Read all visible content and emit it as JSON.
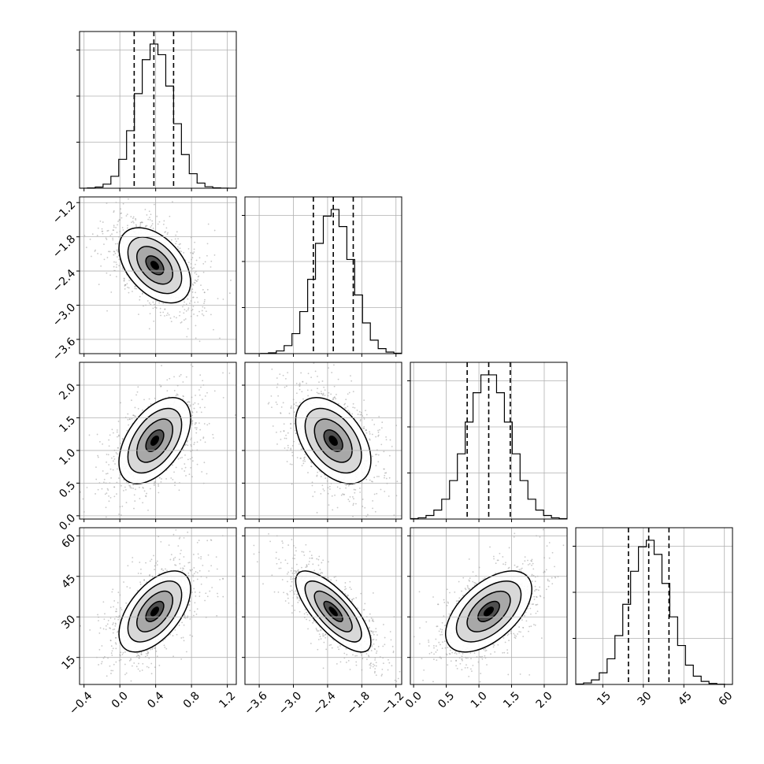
{
  "chart_data": {
    "type": "corner",
    "description_free": true,
    "n_params": 4,
    "grid": true,
    "quantile_lines": "dashed",
    "parameters": [
      {
        "range": [
          -0.45,
          1.3
        ],
        "ticks": [
          -0.4,
          0.0,
          0.4,
          0.8,
          1.2
        ],
        "tick_labels": [
          "−0.4",
          "0.0",
          "0.4",
          "0.8",
          "1.2"
        ],
        "quantiles": [
          0.16,
          0.38,
          0.6
        ],
        "mean": 0.39,
        "sd": 0.2,
        "hist_peak_ticks": 3
      },
      {
        "range": [
          -3.85,
          -1.1
        ],
        "ticks": [
          -3.6,
          -3.0,
          -2.4,
          -1.8,
          -1.2
        ],
        "tick_labels": [
          "−3.6",
          "−3.0",
          "−2.4",
          "−1.8",
          "−1.2"
        ],
        "quantiles": [
          -2.65,
          -2.3,
          -1.95
        ],
        "mean": -2.3,
        "sd": 0.33,
        "hist_peak_ticks": 3
      },
      {
        "range": [
          -0.05,
          2.35
        ],
        "ticks": [
          0.0,
          0.5,
          1.0,
          1.5,
          2.0
        ],
        "tick_labels": [
          "0.0",
          "0.5",
          "1.0",
          "1.5",
          "2.0"
        ],
        "quantiles": [
          0.82,
          1.15,
          1.48
        ],
        "mean": 1.15,
        "sd": 0.33,
        "hist_peak_ticks": 3
      },
      {
        "range": [
          5,
          63
        ],
        "ticks": [
          15,
          30,
          45,
          60
        ],
        "tick_labels": [
          "15",
          "30",
          "45",
          "60"
        ],
        "quantiles": [
          24.5,
          32,
          39.5
        ],
        "mean": 32,
        "sd": 7.5,
        "hist_peak_ticks": 3
      }
    ],
    "correlations": [
      [
        1.0,
        -0.45,
        0.5,
        0.55
      ],
      [
        -0.45,
        1.0,
        -0.45,
        -0.75
      ],
      [
        0.5,
        -0.45,
        1.0,
        0.55
      ],
      [
        0.55,
        -0.75,
        0.55,
        1.0
      ]
    ]
  }
}
